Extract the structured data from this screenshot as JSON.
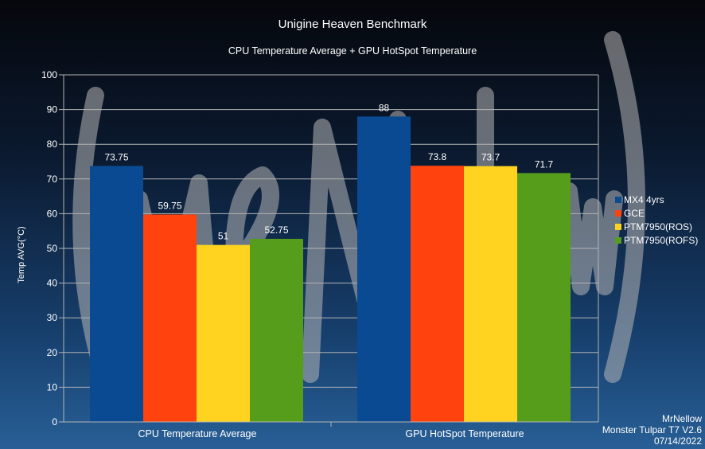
{
  "chart_data": {
    "type": "bar",
    "title": "Unigine Heaven Benchmark",
    "subtitle": "CPU Temperature Average + GPU HotSpot Temperature",
    "xlabel": "",
    "ylabel": "Temp AVG(°C)",
    "ylim": [
      0,
      100
    ],
    "ytick_step": 10,
    "grid": true,
    "legend_position": "right",
    "categories": [
      "CPU Temperature Average",
      "GPU HotSpot Temperature"
    ],
    "series": [
      {
        "name": "MX4 4yrs",
        "color": "#0a4a92",
        "values": [
          73.75,
          88
        ]
      },
      {
        "name": "GCE",
        "color": "#ff420e",
        "values": [
          59.75,
          73.8
        ]
      },
      {
        "name": "PTM7950(ROS)",
        "color": "#ffd320",
        "values": [
          51,
          73.7
        ]
      },
      {
        "name": "PTM7950(ROFS)",
        "color": "#579d1c",
        "values": [
          52.75,
          71.7
        ]
      }
    ],
    "data_labels": [
      [
        "73.75",
        "88"
      ],
      [
        "59.75",
        "73.8"
      ],
      [
        "51",
        "73.7"
      ],
      [
        "52.75",
        "71.7"
      ]
    ]
  },
  "credit": {
    "line1": "MrNellow",
    "line2": "Monster Tulpar T7 V2.6",
    "line3": "07/14/2022"
  },
  "watermark": {
    "text": "(MrNellow)"
  }
}
